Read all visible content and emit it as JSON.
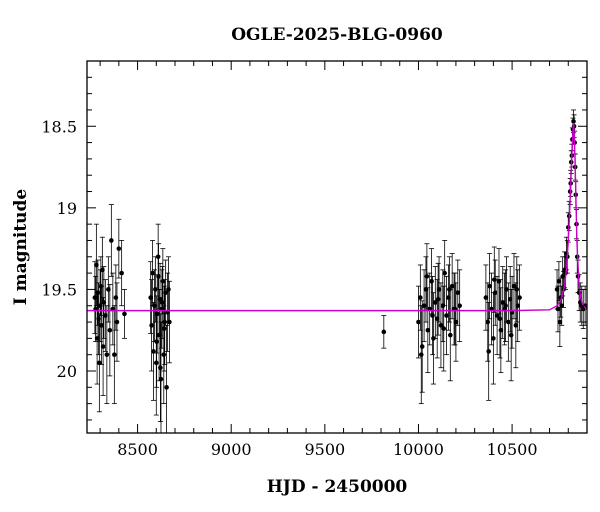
{
  "chart_data": {
    "type": "scatter",
    "title": "OGLE-2025-BLG-0960",
    "xlabel": "HJD - 2450000",
    "ylabel": "I magnitude",
    "xlim": [
      8230,
      10900
    ],
    "ylim": [
      20.38,
      18.1
    ],
    "y_inverted": true,
    "grid": false,
    "legend": "none",
    "x_ticks": [
      8500,
      9000,
      9500,
      10000,
      10500
    ],
    "y_ticks": [
      18.5,
      19,
      19.5,
      20
    ],
    "x_tick_labels": [
      "8500",
      "9000",
      "9500",
      "10000",
      "10500"
    ],
    "y_tick_labels": [
      "18.5",
      "19",
      "19.5",
      "20"
    ],
    "colors": {
      "points": "#000000",
      "model": "#cc00cc",
      "axis": "#000000"
    },
    "model": {
      "type": "microlensing-fit",
      "baseline_mag": 19.63,
      "peak_hjd": 10828,
      "peak_mag": 18.48,
      "curve_x": [
        8230,
        10500,
        10700,
        10740,
        10760,
        10780,
        10790,
        10800,
        10810,
        10815,
        10820,
        10825,
        10828,
        10831,
        10836,
        10841,
        10846,
        10856,
        10866,
        10876,
        10896,
        10900
      ],
      "curve_y": [
        19.63,
        19.63,
        19.625,
        19.6,
        19.57,
        19.48,
        19.38,
        19.2,
        18.95,
        18.8,
        18.65,
        18.53,
        18.48,
        18.53,
        18.7,
        18.95,
        19.2,
        19.45,
        19.55,
        19.59,
        19.62,
        19.62
      ]
    },
    "series": [
      {
        "x": [
          8272,
          8276,
          8280,
          8284,
          8288,
          8292,
          8296,
          8300,
          8304,
          8308,
          8312,
          8316,
          8320,
          8328,
          8336,
          8344,
          8352,
          8360,
          8368,
          8376,
          8384,
          8390,
          8400,
          8415,
          8430
        ],
        "y": [
          19.55,
          19.62,
          19.35,
          19.8,
          19.52,
          19.68,
          19.95,
          19.6,
          19.48,
          19.72,
          19.38,
          19.85,
          19.58,
          19.66,
          19.9,
          19.5,
          19.75,
          19.2,
          19.62,
          19.9,
          19.55,
          19.7,
          19.25,
          19.4,
          19.65
        ],
        "yerr": [
          0.22,
          0.2,
          0.25,
          0.28,
          0.2,
          0.22,
          0.3,
          0.22,
          0.18,
          0.24,
          0.2,
          0.3,
          0.22,
          0.22,
          0.3,
          0.2,
          0.28,
          0.22,
          0.22,
          0.3,
          0.2,
          0.24,
          0.18,
          0.2,
          0.15
        ]
      },
      {
        "x": [
          8570,
          8575,
          8580,
          8585,
          8590,
          8595,
          8600,
          8605,
          8610,
          8615,
          8620,
          8625,
          8630,
          8635,
          8640,
          8645,
          8650,
          8655,
          8660,
          8665,
          8670,
          8602,
          8612,
          8622,
          8632,
          8642
        ],
        "y": [
          19.55,
          19.72,
          19.4,
          19.88,
          19.6,
          19.5,
          19.95,
          19.65,
          19.3,
          19.78,
          19.56,
          20.05,
          19.62,
          19.45,
          19.9,
          19.7,
          19.52,
          20.1,
          19.64,
          19.5,
          19.7,
          19.82,
          19.42,
          19.98,
          19.58,
          19.74
        ],
        "yerr": [
          0.22,
          0.28,
          0.2,
          0.3,
          0.22,
          0.2,
          0.32,
          0.24,
          0.2,
          0.28,
          0.22,
          0.35,
          0.24,
          0.2,
          0.3,
          0.26,
          0.2,
          0.38,
          0.24,
          0.2,
          0.25,
          0.28,
          0.2,
          0.33,
          0.22,
          0.26
        ]
      },
      {
        "x": [
          9815
        ],
        "y": [
          19.76
        ],
        "yerr": [
          0.1
        ]
      },
      {
        "x": [
          10000,
          10010,
          10020,
          10030,
          10040,
          10050,
          10060,
          10070,
          10080,
          10090,
          10100,
          10110,
          10120,
          10130,
          10140,
          10150,
          10160,
          10170,
          10180,
          10190,
          10200,
          10210,
          10220,
          10015,
          10045,
          10075,
          10105,
          10135,
          10165,
          10195
        ],
        "y": [
          19.7,
          19.55,
          19.85,
          19.6,
          19.5,
          19.75,
          19.62,
          19.45,
          19.8,
          19.58,
          19.68,
          19.5,
          19.72,
          19.6,
          19.4,
          19.66,
          19.55,
          19.78,
          19.48,
          19.62,
          19.7,
          19.52,
          19.6,
          19.9,
          19.42,
          19.66,
          19.56,
          19.74,
          19.5,
          19.62
        ],
        "yerr": [
          0.22,
          0.2,
          0.28,
          0.22,
          0.2,
          0.26,
          0.22,
          0.2,
          0.28,
          0.22,
          0.24,
          0.2,
          0.26,
          0.22,
          0.2,
          0.24,
          0.2,
          0.28,
          0.2,
          0.22,
          0.24,
          0.2,
          0.22,
          0.3,
          0.2,
          0.24,
          0.22,
          0.26,
          0.2,
          0.22
        ]
      },
      {
        "x": [
          10360,
          10370,
          10380,
          10390,
          10400,
          10410,
          10420,
          10430,
          10440,
          10450,
          10460,
          10470,
          10480,
          10490,
          10500,
          10510,
          10520,
          10530,
          10540,
          10375,
          10405,
          10435,
          10465,
          10495,
          10525
        ],
        "y": [
          19.55,
          19.7,
          19.48,
          19.62,
          19.8,
          19.52,
          19.66,
          19.45,
          19.75,
          19.58,
          19.62,
          19.5,
          19.7,
          19.56,
          19.64,
          19.48,
          19.72,
          19.6,
          19.55,
          19.88,
          19.44,
          19.68,
          19.6,
          19.78,
          19.5
        ],
        "yerr": [
          0.2,
          0.24,
          0.2,
          0.22,
          0.28,
          0.2,
          0.24,
          0.2,
          0.26,
          0.22,
          0.22,
          0.2,
          0.24,
          0.2,
          0.22,
          0.2,
          0.26,
          0.22,
          0.2,
          0.3,
          0.2,
          0.24,
          0.22,
          0.28,
          0.2
        ]
      },
      {
        "x": [
          10740,
          10745,
          10750,
          10755,
          10760,
          10765,
          10770,
          10775,
          10780,
          10785,
          10790,
          10795,
          10800,
          10805,
          10810,
          10813,
          10816,
          10819,
          10822,
          10825,
          10828,
          10831,
          10834,
          10837,
          10840,
          10844,
          10848,
          10852,
          10858,
          10864,
          10872,
          10880,
          10890
        ],
        "y": [
          19.5,
          19.62,
          19.45,
          19.7,
          19.55,
          19.6,
          19.42,
          19.5,
          19.38,
          19.4,
          19.28,
          19.3,
          19.12,
          19.05,
          18.9,
          18.85,
          18.72,
          18.68,
          18.58,
          18.52,
          18.47,
          18.5,
          18.6,
          18.75,
          18.92,
          19.1,
          19.3,
          19.42,
          19.52,
          19.58,
          19.6,
          19.62,
          19.6
        ],
        "yerr": [
          0.12,
          0.14,
          0.12,
          0.15,
          0.12,
          0.12,
          0.12,
          0.11,
          0.11,
          0.1,
          0.1,
          0.1,
          0.09,
          0.09,
          0.08,
          0.08,
          0.07,
          0.07,
          0.07,
          0.07,
          0.07,
          0.07,
          0.07,
          0.08,
          0.08,
          0.09,
          0.1,
          0.1,
          0.11,
          0.12,
          0.12,
          0.12,
          0.12
        ]
      }
    ]
  }
}
